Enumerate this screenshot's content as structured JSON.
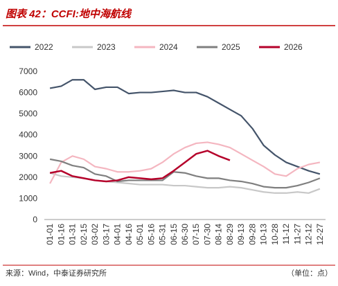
{
  "chart_data": {
    "type": "line",
    "title": "图表 42：CCFI:地中海航线",
    "source": "来源：Wind，中泰证券研究所",
    "unit": "（单位：点）",
    "categories": [
      "01-01",
      "01-16",
      "01-31",
      "02-15",
      "03-02",
      "03-17",
      "04-01",
      "04-16",
      "05-01",
      "05-16",
      "05-31",
      "06-15",
      "06-30",
      "07-15",
      "07-30",
      "08-14",
      "08-29",
      "09-13",
      "09-28",
      "10-13",
      "10-28",
      "11-12",
      "11-27",
      "12-12",
      "12-27"
    ],
    "series": [
      {
        "name": "2022",
        "color": "#44546a",
        "values": [
          6200,
          6300,
          6600,
          6600,
          6150,
          6250,
          6250,
          5950,
          6000,
          6000,
          6050,
          6100,
          6000,
          6000,
          5800,
          5500,
          5200,
          4900,
          4300,
          3500,
          3050,
          2700,
          2500,
          2300,
          2150
        ]
      },
      {
        "name": "2023",
        "color": "#c8c8c8",
        "values": [
          2200,
          2050,
          2000,
          1950,
          1850,
          1800,
          1750,
          1700,
          1650,
          1650,
          1650,
          1600,
          1600,
          1550,
          1500,
          1500,
          1550,
          1500,
          1400,
          1300,
          1250,
          1250,
          1300,
          1250,
          1450
        ]
      },
      {
        "name": "2024",
        "color": "#f4b6c0",
        "values": [
          1700,
          2700,
          3000,
          2850,
          2500,
          2400,
          2250,
          2250,
          2300,
          2400,
          2700,
          3100,
          3400,
          3600,
          3650,
          3550,
          3400,
          3100,
          2800,
          2500,
          2150,
          2050,
          2400,
          2600,
          2700
        ]
      },
      {
        "name": "2025",
        "color": "#7f7f7f",
        "values": [
          2850,
          2750,
          2550,
          2450,
          2150,
          2050,
          1800,
          1850,
          1850,
          1850,
          1850,
          2250,
          2200,
          2050,
          1950,
          1950,
          1850,
          1800,
          1700,
          1550,
          1500,
          1500,
          1600,
          1750,
          1950
        ]
      },
      {
        "name": "2026",
        "color": "#b5002a",
        "values": [
          2200,
          2300,
          2050,
          1950,
          1850,
          1800,
          1850,
          2000,
          1950,
          1900,
          1950,
          2300,
          2700,
          3100,
          3250,
          3000,
          2800,
          null,
          null,
          null,
          null,
          null,
          null,
          null,
          null
        ]
      }
    ],
    "ylim": [
      0,
      7000
    ],
    "yticks": [
      0,
      1000,
      2000,
      3000,
      4000,
      5000,
      6000,
      7000
    ],
    "grid": false
  }
}
